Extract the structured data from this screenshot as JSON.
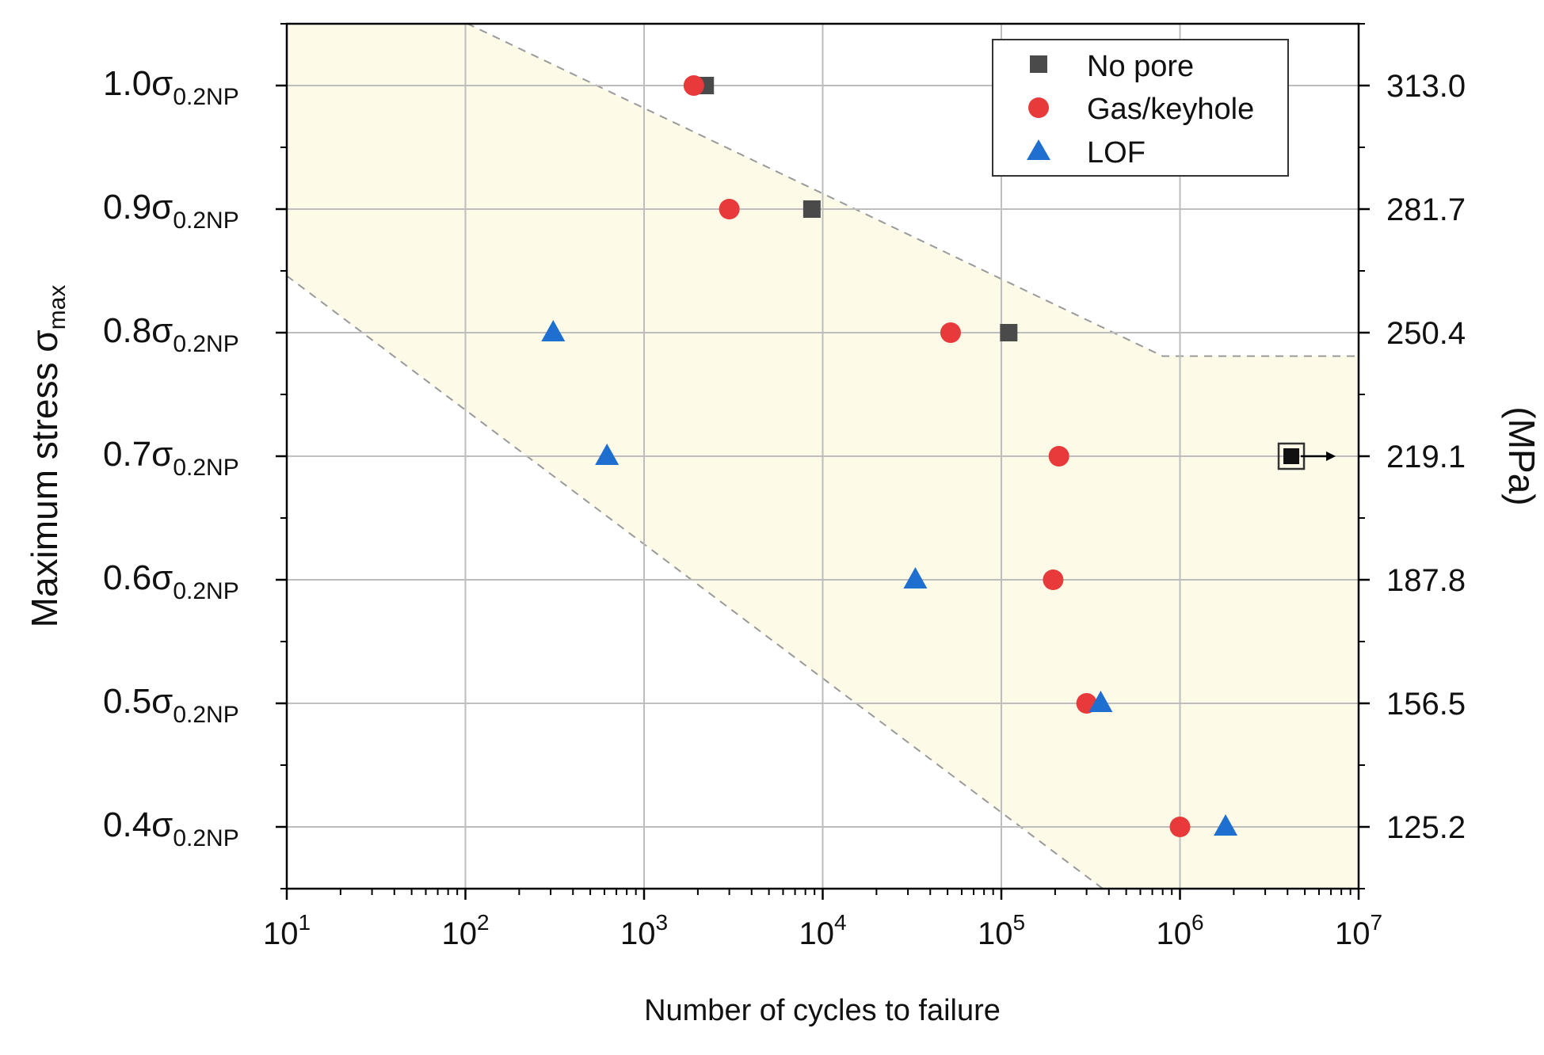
{
  "chart_data": {
    "type": "scatter",
    "x_scale": "log",
    "xlim": [
      10,
      10000000
    ],
    "ylim": [
      0.35,
      1.05
    ],
    "grid": true,
    "xlabel": "Number of cycles to failure",
    "ylabel": "Maximum stress σ",
    "ylabel_sub": "max",
    "y2label": "(MPa)",
    "x_ticks": [
      {
        "value": 10,
        "base": "10",
        "exp": "1"
      },
      {
        "value": 100,
        "base": "10",
        "exp": "2"
      },
      {
        "value": 1000,
        "base": "10",
        "exp": "3"
      },
      {
        "value": 10000,
        "base": "10",
        "exp": "4"
      },
      {
        "value": 100000,
        "base": "10",
        "exp": "5"
      },
      {
        "value": 1000000,
        "base": "10",
        "exp": "6"
      },
      {
        "value": 10000000,
        "base": "10",
        "exp": "7"
      }
    ],
    "y_ticks": [
      {
        "value": 1.0,
        "main": "1.0σ",
        "sub": "0.2NP",
        "mpa": "313.0"
      },
      {
        "value": 0.9,
        "main": "0.9σ",
        "sub": "0.2NP",
        "mpa": "281.7"
      },
      {
        "value": 0.8,
        "main": "0.8σ",
        "sub": "0.2NP",
        "mpa": "250.4"
      },
      {
        "value": 0.7,
        "main": "0.7σ",
        "sub": "0.2NP",
        "mpa": "219.1"
      },
      {
        "value": 0.6,
        "main": "0.6σ",
        "sub": "0.2NP",
        "mpa": "187.8"
      },
      {
        "value": 0.5,
        "main": "0.5σ",
        "sub": "0.2NP",
        "mpa": "156.5"
      },
      {
        "value": 0.4,
        "main": "0.4σ",
        "sub": "0.2NP",
        "mpa": "125.2"
      }
    ],
    "series": [
      {
        "name": "No pore",
        "marker": "square",
        "color": "#4a4a4a",
        "points": [
          {
            "x": 2200,
            "y": 1.0
          },
          {
            "x": 8700,
            "y": 0.9
          },
          {
            "x": 110000,
            "y": 0.8
          }
        ],
        "runouts": [
          {
            "x": 4200000,
            "y": 0.7
          }
        ]
      },
      {
        "name": "Gas/keyhole",
        "marker": "circle",
        "color": "#e8393b",
        "points": [
          {
            "x": 1900,
            "y": 1.0
          },
          {
            "x": 3000,
            "y": 0.9
          },
          {
            "x": 52000,
            "y": 0.8
          },
          {
            "x": 210000,
            "y": 0.7
          },
          {
            "x": 195000,
            "y": 0.6
          },
          {
            "x": 300000,
            "y": 0.5
          },
          {
            "x": 1000000,
            "y": 0.4
          }
        ]
      },
      {
        "name": "LOF",
        "marker": "triangle",
        "color": "#1f6fd1",
        "points": [
          {
            "x": 310,
            "y": 0.8
          },
          {
            "x": 620,
            "y": 0.7
          },
          {
            "x": 33000,
            "y": 0.6
          },
          {
            "x": 360000,
            "y": 0.5
          },
          {
            "x": 1800000,
            "y": 0.4
          }
        ]
      }
    ],
    "scatter_band": {
      "fill": "#fdfbe8",
      "line_color": "#9a9a9a",
      "upper_boundary": [
        {
          "x": 10,
          "y": 1.12
        },
        {
          "x": 800000,
          "y": 0.781
        },
        {
          "x": 10000000,
          "y": 0.781
        }
      ],
      "lower_boundary": [
        {
          "x": 10,
          "y": 0.846
        },
        {
          "x": 370000,
          "y": 0.35
        }
      ]
    },
    "legend_position": "top-right"
  }
}
